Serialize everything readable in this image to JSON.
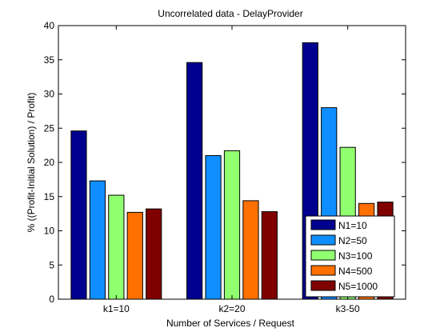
{
  "chart_data": {
    "type": "bar",
    "title": "Uncorrelated data - DelayProvider",
    "xlabel": "Number of Services / Request",
    "ylabel": "% ((Profit-Initial Solution) / Profit)",
    "categories": [
      "k1=10",
      "k2=20",
      "k3-50"
    ],
    "ylim": [
      0,
      40
    ],
    "yticks": [
      0,
      5,
      10,
      15,
      20,
      25,
      30,
      35,
      40
    ],
    "grid": false,
    "legend_position": "bottom-right",
    "series": [
      {
        "name": "N1=10",
        "color": "#00008f",
        "values": [
          24.6,
          34.6,
          37.5
        ]
      },
      {
        "name": "N2=50",
        "color": "#0f8fff",
        "values": [
          17.3,
          21.0,
          28.0
        ]
      },
      {
        "name": "N3=100",
        "color": "#90ff70",
        "values": [
          15.2,
          21.7,
          22.2
        ]
      },
      {
        "name": "N4=500",
        "color": "#ff7000",
        "values": [
          12.7,
          14.4,
          14.0
        ]
      },
      {
        "name": "N5=1000",
        "color": "#800000",
        "values": [
          13.2,
          12.8,
          14.2
        ]
      }
    ]
  }
}
